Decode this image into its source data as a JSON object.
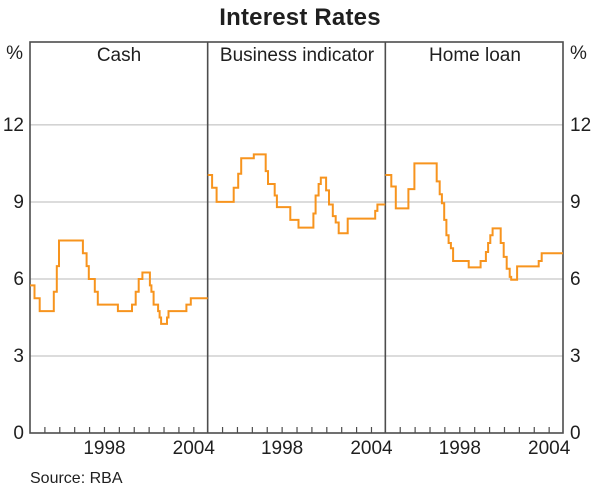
{
  "chart_data": {
    "type": "line",
    "subtype": "step",
    "title": "Interest Rates",
    "unit_label": "%",
    "source": "Source: RBA",
    "line_color": "#f7941e",
    "frame_color": "#4d4d4d",
    "gridline_color": "#b9b9b9",
    "text_color": "#1f1f1f",
    "ylim": [
      0,
      15.23
    ],
    "y_gridlines": [
      3,
      6,
      9,
      12
    ],
    "y_tick_labels": [
      12,
      9,
      6,
      3,
      0
    ],
    "x_range": [
      1993.0,
      2004.93
    ],
    "x_tick_years": [
      1994,
      1995,
      1996,
      1997,
      1998,
      1999,
      2000,
      2001,
      2002,
      2003,
      2004
    ],
    "x_label_years": [
      1998,
      2004
    ],
    "legend_position": "panel-top-center",
    "grid": "horizontal-only",
    "panels": [
      {
        "label": "Cash",
        "series": [
          [
            1993.0,
            5.75
          ],
          [
            1993.3,
            5.25
          ],
          [
            1993.65,
            4.75
          ],
          [
            1994.6,
            5.5
          ],
          [
            1994.8,
            6.5
          ],
          [
            1994.95,
            7.5
          ],
          [
            1996.55,
            7.0
          ],
          [
            1996.8,
            6.5
          ],
          [
            1996.95,
            6.0
          ],
          [
            1997.35,
            5.5
          ],
          [
            1997.55,
            5.0
          ],
          [
            1998.9,
            4.75
          ],
          [
            1999.85,
            5.0
          ],
          [
            2000.1,
            5.5
          ],
          [
            2000.3,
            6.0
          ],
          [
            2000.55,
            6.25
          ],
          [
            2001.05,
            5.75
          ],
          [
            2001.15,
            5.5
          ],
          [
            2001.3,
            5.0
          ],
          [
            2001.6,
            4.75
          ],
          [
            2001.7,
            4.5
          ],
          [
            2001.8,
            4.25
          ],
          [
            2002.2,
            4.5
          ],
          [
            2002.3,
            4.75
          ],
          [
            2003.5,
            5.0
          ],
          [
            2003.8,
            5.25
          ]
        ]
      },
      {
        "label": "Business indicator",
        "series": [
          [
            1993.0,
            10.05
          ],
          [
            1993.3,
            9.55
          ],
          [
            1993.6,
            9.0
          ],
          [
            1994.75,
            9.55
          ],
          [
            1995.05,
            10.1
          ],
          [
            1995.25,
            10.7
          ],
          [
            1996.1,
            10.85
          ],
          [
            1996.9,
            10.2
          ],
          [
            1997.05,
            9.7
          ],
          [
            1997.5,
            9.25
          ],
          [
            1997.65,
            8.8
          ],
          [
            1998.55,
            8.3
          ],
          [
            1999.1,
            8.0
          ],
          [
            2000.1,
            8.55
          ],
          [
            2000.25,
            9.25
          ],
          [
            2000.45,
            9.7
          ],
          [
            2000.6,
            9.95
          ],
          [
            2000.95,
            9.45
          ],
          [
            2001.15,
            8.9
          ],
          [
            2001.4,
            8.45
          ],
          [
            2001.6,
            8.2
          ],
          [
            2001.8,
            7.78
          ],
          [
            2002.4,
            8.35
          ],
          [
            2004.25,
            8.65
          ],
          [
            2004.4,
            8.9
          ]
        ]
      },
      {
        "label": "Home loan",
        "series": [
          [
            1993.0,
            10.05
          ],
          [
            1993.4,
            9.6
          ],
          [
            1993.7,
            8.75
          ],
          [
            1994.55,
            9.5
          ],
          [
            1994.95,
            10.5
          ],
          [
            1996.45,
            9.8
          ],
          [
            1996.65,
            9.3
          ],
          [
            1996.8,
            8.95
          ],
          [
            1996.95,
            8.3
          ],
          [
            1997.1,
            7.7
          ],
          [
            1997.25,
            7.4
          ],
          [
            1997.4,
            7.2
          ],
          [
            1997.55,
            6.7
          ],
          [
            1998.6,
            6.45
          ],
          [
            1999.4,
            6.7
          ],
          [
            1999.75,
            7.05
          ],
          [
            1999.9,
            7.4
          ],
          [
            2000.05,
            7.7
          ],
          [
            2000.2,
            7.97
          ],
          [
            2000.75,
            7.4
          ],
          [
            2000.95,
            6.86
          ],
          [
            2001.15,
            6.4
          ],
          [
            2001.35,
            6.08
          ],
          [
            2001.45,
            5.97
          ],
          [
            2001.85,
            6.49
          ],
          [
            2003.3,
            6.7
          ],
          [
            2003.5,
            7.0
          ]
        ]
      }
    ]
  }
}
